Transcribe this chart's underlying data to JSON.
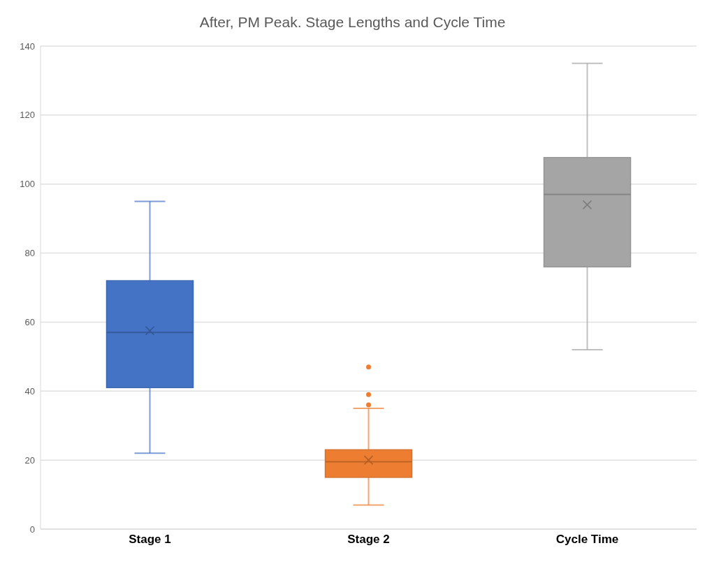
{
  "chart_data": {
    "type": "box",
    "title": "After, PM Peak. Stage Lengths and Cycle Time",
    "categories": [
      "Stage 1",
      "Stage 2",
      "Cycle Time"
    ],
    "colors": [
      "#4472c4",
      "#ed7d31",
      "#a5a5a5"
    ],
    "boxes": [
      {
        "low": 22,
        "q1": 41,
        "median": 57,
        "q3": 72,
        "high": 95,
        "mean": 57.5
      },
      {
        "low": 7,
        "q1": 15,
        "median": 19.5,
        "q3": 23,
        "high": 35,
        "mean": 20,
        "outliers": [
          36,
          39,
          47
        ]
      },
      {
        "low": 52,
        "q1": 76,
        "median": 97,
        "q3": 107.7,
        "high": 135,
        "mean": 94
      }
    ],
    "ylim": [
      0,
      140
    ],
    "yticks": [
      0,
      20,
      40,
      60,
      80,
      100,
      120,
      140
    ],
    "grid": "y"
  }
}
